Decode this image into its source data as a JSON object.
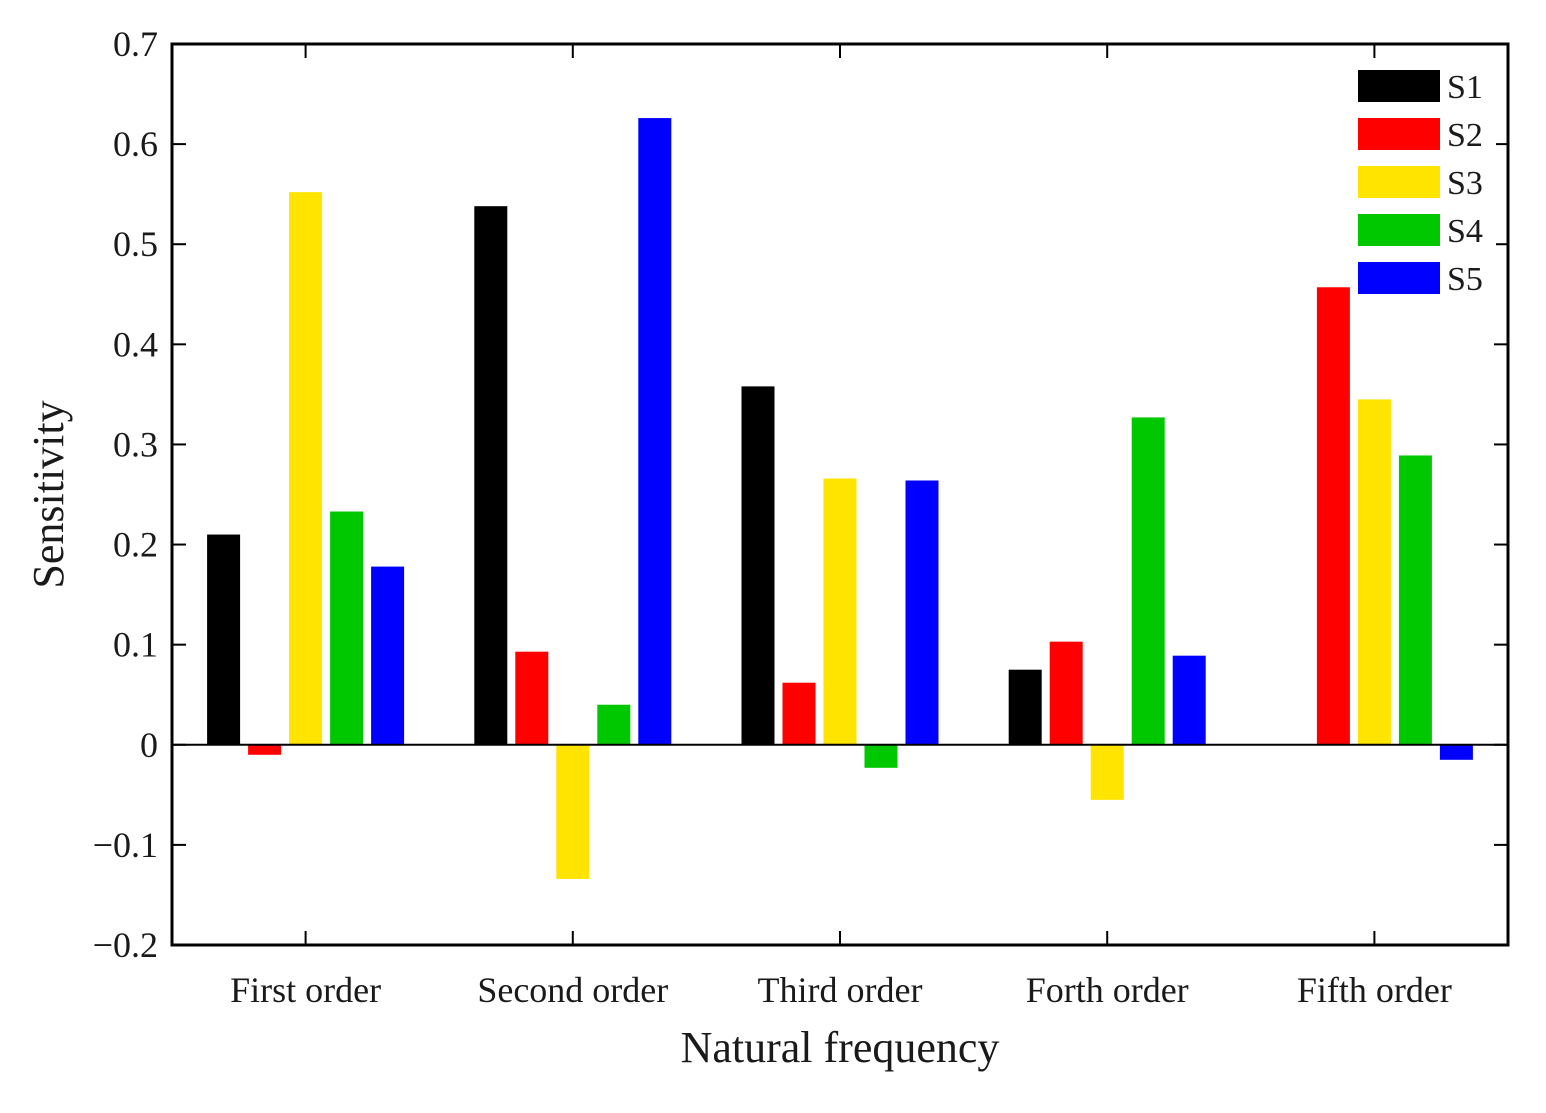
{
  "chart_data": {
    "type": "bar",
    "categories": [
      "First order",
      "Second order",
      "Third order",
      "Forth order",
      "Fifth order"
    ],
    "series": [
      {
        "name": "S1",
        "color": "#000000",
        "values": [
          0.21,
          0.538,
          0.358,
          0.075,
          0.0
        ]
      },
      {
        "name": "S2",
        "color": "#ff0000",
        "values": [
          -0.01,
          0.093,
          0.062,
          0.103,
          0.457
        ]
      },
      {
        "name": "S3",
        "color": "#ffe400",
        "values": [
          0.552,
          -0.134,
          0.266,
          -0.055,
          0.345
        ]
      },
      {
        "name": "S4",
        "color": "#00c800",
        "values": [
          0.233,
          0.04,
          -0.023,
          0.327,
          0.289
        ]
      },
      {
        "name": "S5",
        "color": "#0000ff",
        "values": [
          0.178,
          0.626,
          0.264,
          0.089,
          -0.015
        ]
      }
    ],
    "xlabel": "Natural frequency",
    "ylabel": "Sensitivity",
    "ylim": [
      -0.2,
      0.7
    ],
    "yticks": [
      -0.2,
      -0.1,
      0,
      0.1,
      0.2,
      0.3,
      0.4,
      0.5,
      0.6,
      0.7
    ],
    "ytick_labels": [
      "−0.2",
      "−0.1",
      "0",
      "0.1",
      "0.2",
      "0.3",
      "0.4",
      "0.5",
      "0.6",
      "0.7"
    ],
    "legend_position": "top-right",
    "grid": false
  }
}
